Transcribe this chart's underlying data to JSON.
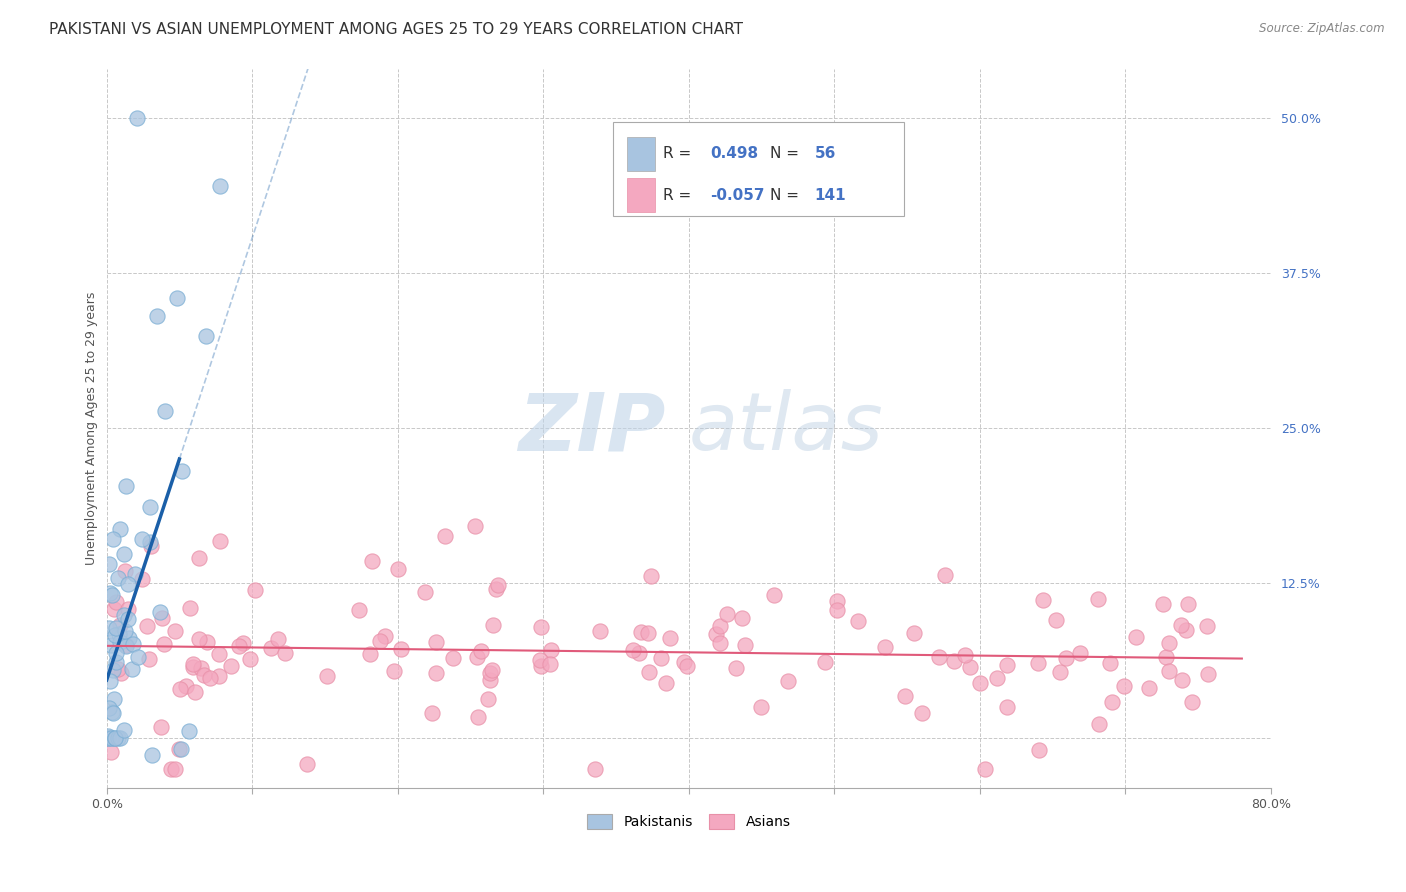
{
  "title": "PAKISTANI VS ASIAN UNEMPLOYMENT AMONG AGES 25 TO 29 YEARS CORRELATION CHART",
  "source": "Source: ZipAtlas.com",
  "ylabel": "Unemployment Among Ages 25 to 29 years",
  "xlim": [
    0.0,
    0.8
  ],
  "ylim": [
    -0.04,
    0.54
  ],
  "yticks_right": [
    0.0,
    0.125,
    0.25,
    0.375,
    0.5
  ],
  "yticklabels_right": [
    "",
    "12.5%",
    "25.0%",
    "37.5%",
    "50.0%"
  ],
  "pakistani_R": 0.498,
  "pakistani_N": 56,
  "asian_R": -0.057,
  "asian_N": 141,
  "pakistani_color": "#a8c4e0",
  "pakistani_edge": "#7aaed4",
  "asian_color": "#f4a8c0",
  "asian_edge": "#e890a8",
  "pakistani_line_color": "#1a5fa8",
  "asian_line_color": "#e05a7a",
  "legend_label_pakistani": "Pakistanis",
  "legend_label_asian": "Asians",
  "background_color": "#ffffff",
  "grid_color": "#c8c8c8",
  "watermark_zip_color": "#c0d4e8",
  "watermark_atlas_color": "#b8cce0",
  "title_fontsize": 11,
  "axis_fontsize": 9,
  "tick_fontsize": 9,
  "legend_fontsize": 11,
  "source_fontsize": 8.5
}
